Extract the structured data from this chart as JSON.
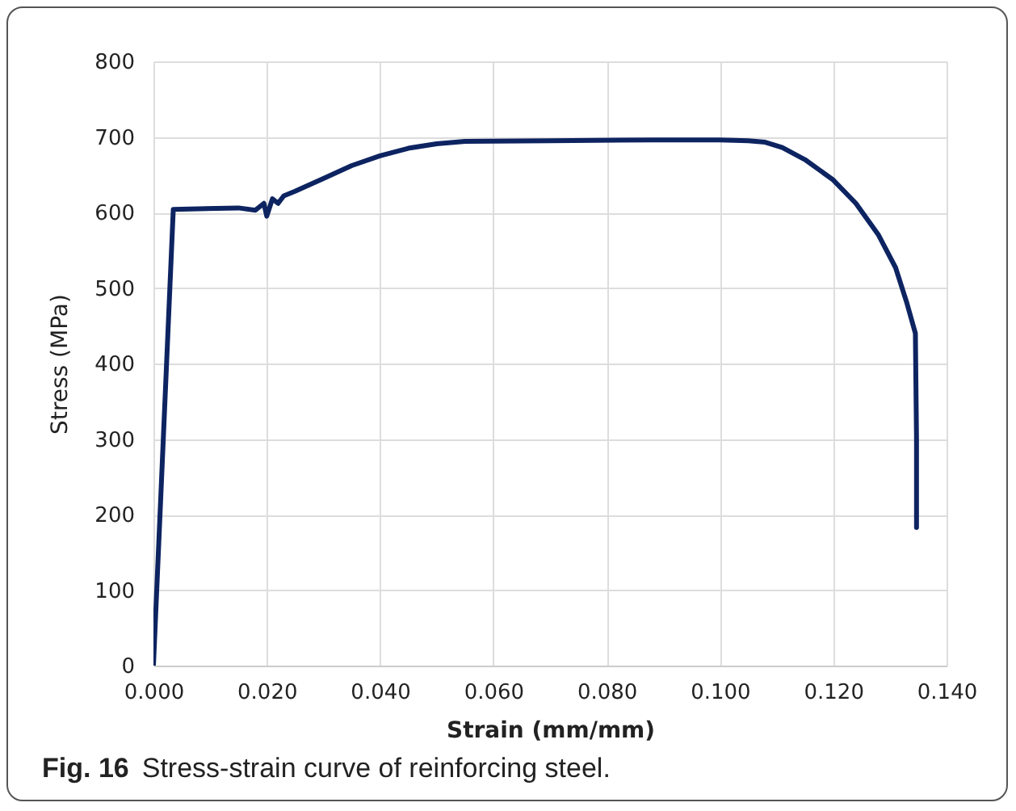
{
  "chart_data": {
    "type": "line",
    "xlabel": "Strain  (mm/mm)",
    "ylabel": "Stress (MPa)",
    "annotations": [
      "Fig. 16",
      "Stress-strain curve of reinforcing steel."
    ],
    "xlim": [
      0,
      0.14
    ],
    "xticks": [
      {
        "value": 0,
        "label": "0.000"
      },
      {
        "value": 0.02,
        "label": "0.020"
      },
      {
        "value": 0.04,
        "label": "0.040"
      },
      {
        "value": 0.06,
        "label": "0.060"
      },
      {
        "value": 0.08,
        "label": "0.080"
      },
      {
        "value": 0.1,
        "label": "0.100"
      },
      {
        "value": 0.12,
        "label": "0.120"
      },
      {
        "value": 0.14,
        "label": "0.140"
      }
    ],
    "ylim": [
      0,
      800
    ],
    "yticks": [
      0,
      100,
      200,
      300,
      400,
      500,
      600,
      700,
      800
    ],
    "grid": true,
    "line_style": "solid",
    "series": [
      {
        "color": "#0d2461",
        "x": [
          0,
          0.0035,
          0.015,
          0.018,
          0.0195,
          0.02,
          0.021,
          0.022,
          0.023,
          0.025,
          0.03,
          0.035,
          0.04,
          0.045,
          0.05,
          0.055,
          0.07,
          0.088,
          0.1,
          0.105,
          0.108,
          0.111,
          0.115,
          0.12,
          0.124,
          0.128,
          0.131,
          0.133,
          0.1345,
          0.1347,
          0.1347
        ],
        "values": [
          0,
          604,
          606,
          603,
          612,
          595,
          618,
          612,
          622,
          628,
          645,
          662,
          675,
          685,
          691,
          694,
          695,
          696,
          696,
          695,
          693,
          686,
          670,
          643,
          612,
          570,
          527,
          480,
          440,
          300,
          183
        ]
      }
    ]
  }
}
